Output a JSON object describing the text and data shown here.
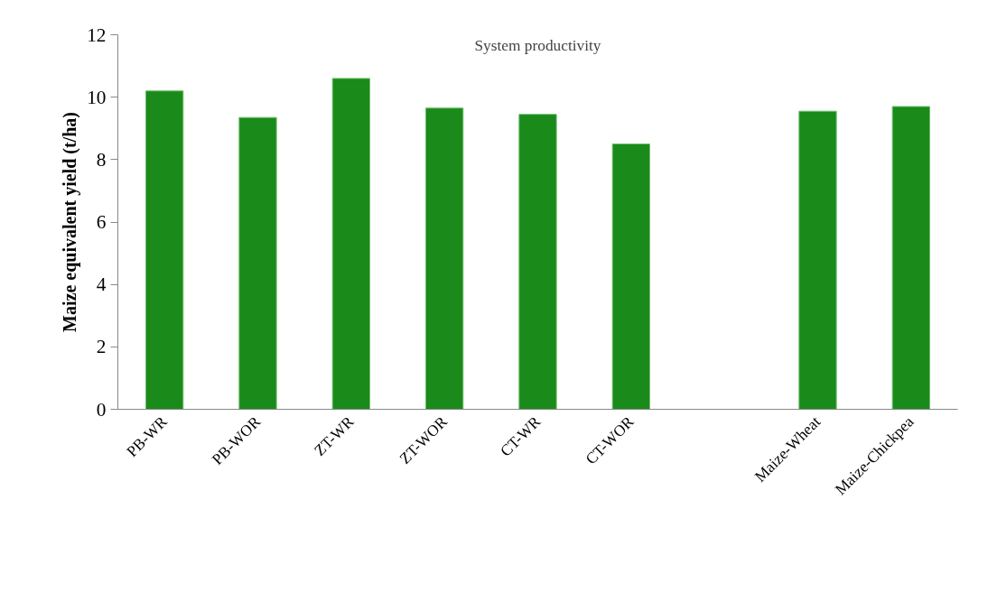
{
  "chart_data": {
    "type": "bar",
    "title": "System productivity",
    "ylabel": "Maize equivalent yield (t/ha)",
    "categories": [
      "PB-WR",
      "PB-WOR",
      "ZT-WR",
      "ZT-WOR",
      "CT-WR",
      "CT-WOR",
      null,
      "Maize-Wheat",
      "Maize-Chickpea"
    ],
    "values": [
      10.2,
      9.35,
      10.6,
      9.65,
      9.45,
      8.5,
      null,
      9.55,
      9.7
    ],
    "color": "#1a8a1a",
    "ylim": [
      0,
      12
    ],
    "yticks": [
      0,
      2,
      4,
      6,
      8,
      10,
      12
    ],
    "grid": false
  }
}
